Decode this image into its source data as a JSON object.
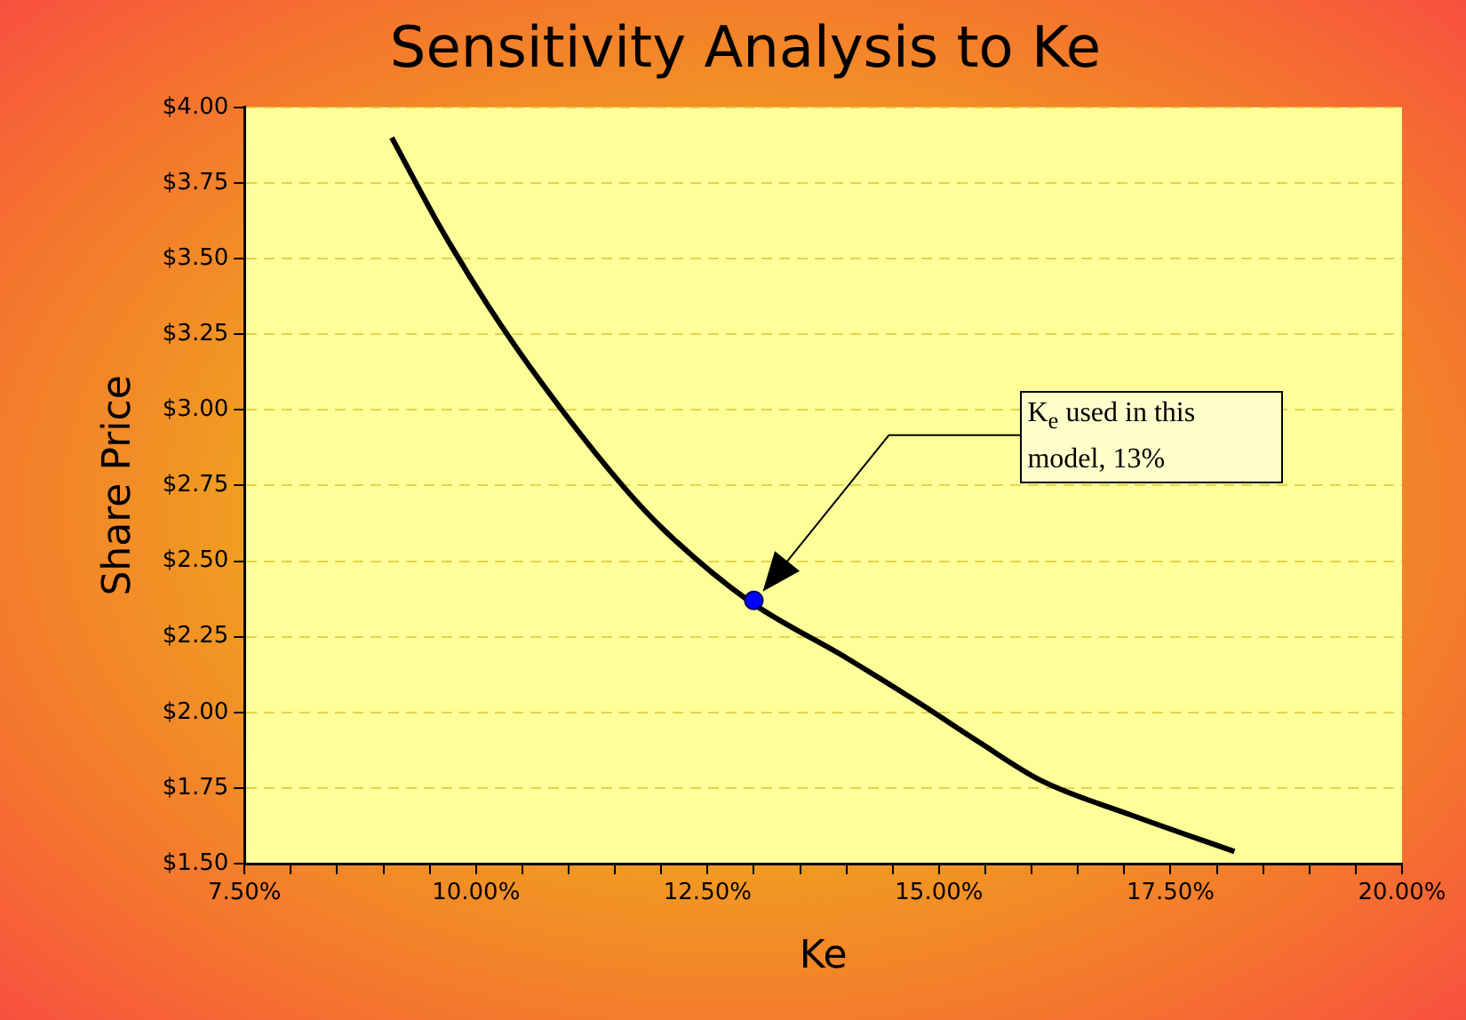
{
  "chart_data": {
    "type": "line",
    "title": "Sensitivity Analysis to Ke",
    "xlabel": "Ke",
    "ylabel": "Share Price",
    "series": [
      {
        "color": "#000000",
        "marker": "none",
        "x": [
          9.09,
          9.62,
          10.14,
          10.73,
          11.58,
          12.04,
          12.94,
          14.0,
          14.79,
          15.44,
          16.1,
          17.08,
          18.19
        ],
        "values": [
          3.9,
          3.6,
          3.34,
          3.08,
          2.75,
          2.6,
          2.37,
          2.18,
          2.03,
          1.9,
          1.775,
          1.66,
          1.54
        ]
      },
      {
        "type": "scatter",
        "color": "#0000ff",
        "marker": "circle",
        "x": [
          13
        ],
        "values": [
          2.37
        ]
      }
    ],
    "xlim": [
      7.5,
      20
    ],
    "ylim": [
      1.5,
      4
    ],
    "xticks": [
      {
        "value": 7.5,
        "label": "7.50%"
      },
      {
        "value": 8,
        "label": null
      },
      {
        "value": 8.5,
        "label": null
      },
      {
        "value": 9,
        "label": null
      },
      {
        "value": 9.5,
        "label": null
      },
      {
        "value": 10,
        "label": "10.00%"
      },
      {
        "value": 10.5,
        "label": null
      },
      {
        "value": 11,
        "label": null
      },
      {
        "value": 11.5,
        "label": null
      },
      {
        "value": 12,
        "label": null
      },
      {
        "value": 12.5,
        "label": "12.50%"
      },
      {
        "value": 13,
        "label": null
      },
      {
        "value": 13.5,
        "label": null
      },
      {
        "value": 14,
        "label": null
      },
      {
        "value": 14.5,
        "label": null
      },
      {
        "value": 15,
        "label": "15.00%"
      },
      {
        "value": 15.5,
        "label": null
      },
      {
        "value": 16,
        "label": null
      },
      {
        "value": 16.5,
        "label": null
      },
      {
        "value": 17,
        "label": null
      },
      {
        "value": 17.5,
        "label": "17.50%"
      },
      {
        "value": 18,
        "label": null
      },
      {
        "value": 18.5,
        "label": null
      },
      {
        "value": 19,
        "label": null
      },
      {
        "value": 19.5,
        "label": null
      },
      {
        "value": 20,
        "label": "20.00%"
      }
    ],
    "yticks": [
      {
        "value": 1.5,
        "label": "$1.50"
      },
      {
        "value": 1.75,
        "label": "$1.75"
      },
      {
        "value": 2,
        "label": "$2.00"
      },
      {
        "value": 2.25,
        "label": "$2.25"
      },
      {
        "value": 2.5,
        "label": "$2.50"
      },
      {
        "value": 2.75,
        "label": "$2.75"
      },
      {
        "value": 3,
        "label": "$3.00"
      },
      {
        "value": 3.25,
        "label": "$3.25"
      },
      {
        "value": 3.5,
        "label": "$3.50"
      },
      {
        "value": 3.75,
        "label": "$3.75"
      },
      {
        "value": 4,
        "label": "$4.00"
      }
    ],
    "grid": "y",
    "legend": false,
    "annotations": [
      "K$_{e}$ used in this model, 13%"
    ]
  }
}
